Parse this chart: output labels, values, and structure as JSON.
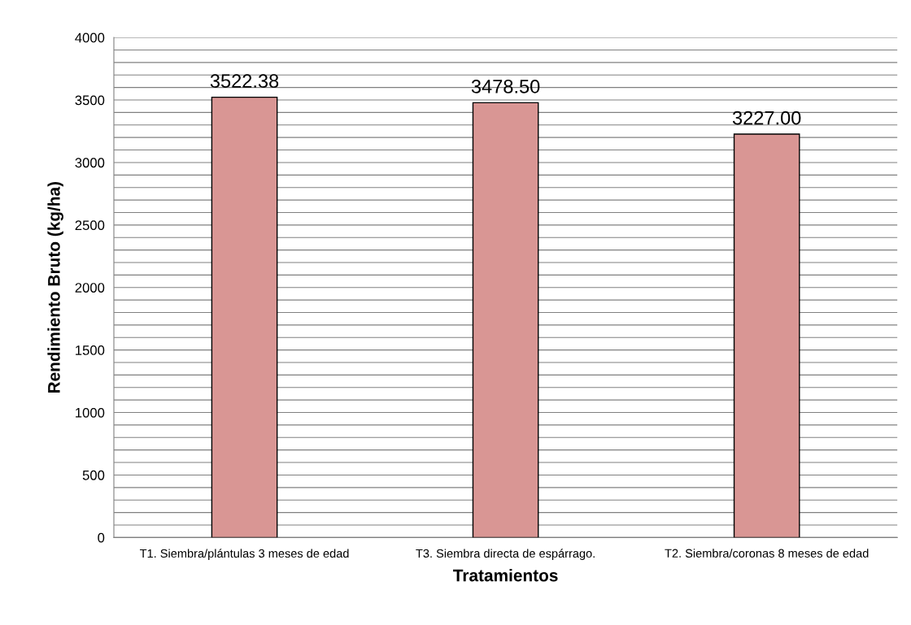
{
  "chart_data": {
    "type": "bar",
    "xlabel": "Tratamientos",
    "ylabel": "Rendimiento Bruto (kg/ha)",
    "categories": [
      "T1. Siembra/plántulas 3 meses de edad",
      "T3. Siembra directa de espárrago.",
      "T2. Siembra/coronas 8 meses de edad"
    ],
    "values": [
      3522.38,
      3478.5,
      3227.0
    ],
    "value_labels": [
      "3522.38",
      "3478.50",
      "3227.00"
    ],
    "color": "#d99694",
    "ylim": [
      0,
      4000
    ],
    "yticks": [
      0,
      {
        "value": 100,
        "label": null
      },
      {
        "value": 200,
        "label": null
      },
      {
        "value": 300,
        "label": null
      },
      {
        "value": 400,
        "label": null
      },
      500,
      {
        "value": 600,
        "label": null
      },
      {
        "value": 700,
        "label": null
      },
      {
        "value": 800,
        "label": null
      },
      {
        "value": 900,
        "label": null
      },
      1000,
      {
        "value": 1100,
        "label": null
      },
      {
        "value": 1200,
        "label": null
      },
      {
        "value": 1300,
        "label": null
      },
      {
        "value": 1400,
        "label": null
      },
      1500,
      {
        "value": 1600,
        "label": null
      },
      {
        "value": 1700,
        "label": null
      },
      {
        "value": 1800,
        "label": null
      },
      {
        "value": 1900,
        "label": null
      },
      2000,
      {
        "value": 2100,
        "label": null
      },
      {
        "value": 2200,
        "label": null
      },
      {
        "value": 2300,
        "label": null
      },
      {
        "value": 2400,
        "label": null
      },
      2500,
      {
        "value": 2600,
        "label": null
      },
      {
        "value": 2700,
        "label": null
      },
      {
        "value": 2800,
        "label": null
      },
      {
        "value": 2900,
        "label": null
      },
      3000,
      {
        "value": 3100,
        "label": null
      },
      {
        "value": 3200,
        "label": null
      },
      {
        "value": 3300,
        "label": null
      },
      {
        "value": 3400,
        "label": null
      },
      3500,
      {
        "value": 3600,
        "label": null
      },
      {
        "value": 3700,
        "label": null
      },
      {
        "value": 3800,
        "label": null
      },
      {
        "value": 3900,
        "label": null
      },
      4000
    ],
    "grid": "y"
  }
}
